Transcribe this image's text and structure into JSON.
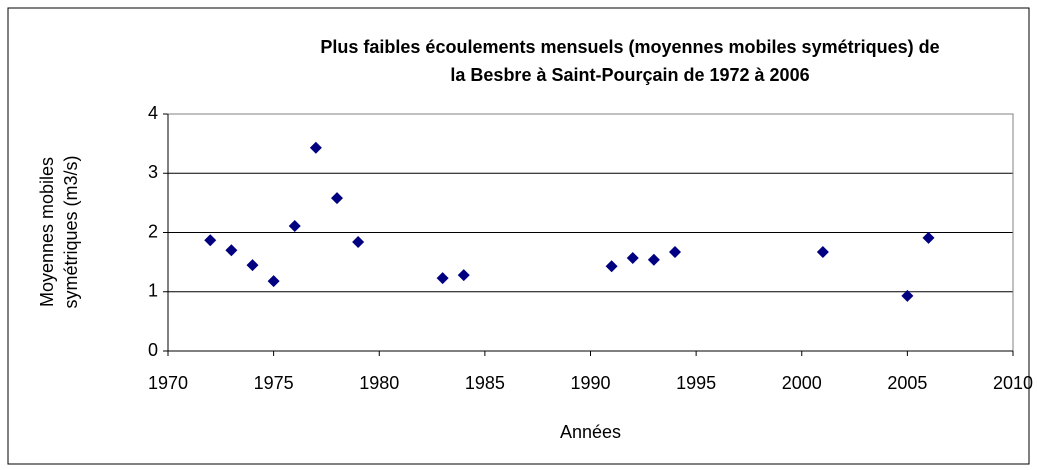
{
  "chart_data": {
    "type": "scatter",
    "title": [
      "Plus faibles écoulements mensuels (moyennes mobiles symétriques) de",
      "la Besbre à Saint-Pourçain de 1972 à 2006"
    ],
    "xlabel": "Années",
    "ylabel": [
      "Moyennes mobiles",
      "symétriques (m3/s)"
    ],
    "series": [
      {
        "name": "Moyennes mobiles",
        "color": "#000080",
        "x": [
          1972,
          1973,
          1974,
          1975,
          1976,
          1977,
          1978,
          1979,
          1983,
          1984,
          1991,
          1992,
          1993,
          1994,
          2001,
          2005,
          2006
        ],
        "values": [
          1.87,
          1.7,
          1.45,
          1.18,
          2.11,
          3.43,
          2.58,
          1.84,
          1.23,
          1.28,
          1.43,
          1.57,
          1.54,
          1.67,
          1.67,
          0.93,
          1.91
        ]
      }
    ],
    "xlim": [
      1970,
      2010
    ],
    "xticks": [
      1970,
      1975,
      1980,
      1985,
      1990,
      1995,
      2000,
      2005,
      2010
    ],
    "ylim": [
      0,
      4
    ],
    "yticks": [
      0,
      1,
      2,
      3,
      4
    ],
    "grid": true
  }
}
